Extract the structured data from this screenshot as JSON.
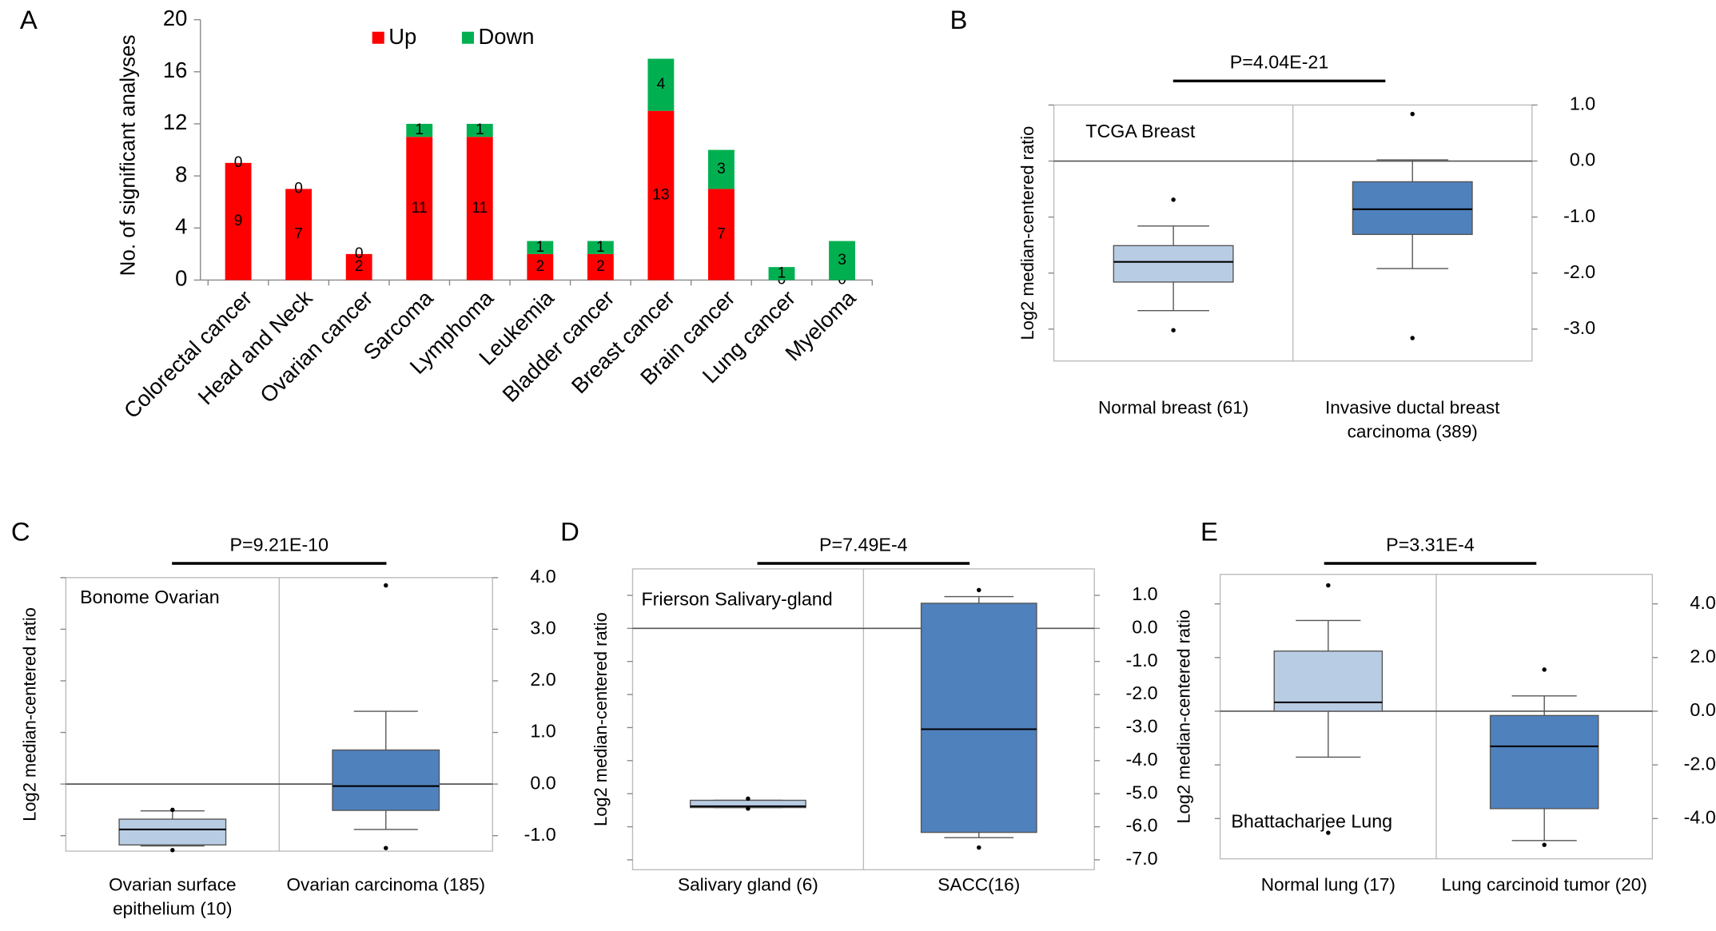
{
  "chart_data": [
    {
      "type": "stacked_bar",
      "panel": "A",
      "ylabel": "No. of significant analyses",
      "categories": [
        "Colorectal cancer",
        "Head and Neck",
        "Ovarian cancer",
        "Sarcoma",
        "Lymphoma",
        "Leukemia",
        "Bladder cancer",
        "Breast cancer",
        "Brain cancer",
        "Lung cancer",
        "Myeloma"
      ],
      "series": [
        {
          "name": "Up",
          "color": "#ff0000",
          "values": [
            9,
            7,
            2,
            11,
            11,
            2,
            2,
            13,
            7,
            0,
            0
          ]
        },
        {
          "name": "Down",
          "color": "#00b050",
          "values": [
            0,
            0,
            0,
            1,
            1,
            1,
            1,
            4,
            3,
            1,
            3
          ]
        }
      ],
      "ylim": [
        0,
        20
      ],
      "yticks": [
        0,
        4,
        8,
        12,
        16,
        20
      ]
    },
    {
      "type": "box",
      "panel": "B",
      "title": "P=4.04E-21",
      "annotation": "TCGA Breast",
      "ylabel": "Log2 median-centered ratio",
      "categories": [
        "Normal breast (61)",
        "Invasive ductal breast carcinoma (389)"
      ],
      "colors": [
        "#b8cce4",
        "#4f81bd"
      ],
      "boxes": [
        {
          "min": -2.67,
          "q1": -2.16,
          "median": -1.8,
          "q3": -1.51,
          "max": -1.16,
          "outliers": [
            -0.69,
            -3.02
          ]
        },
        {
          "min": -1.92,
          "q1": -1.31,
          "median": -0.86,
          "q3": -0.37,
          "max": 0.02,
          "outliers": [
            0.84,
            -3.16
          ]
        }
      ],
      "ylim": [
        -3.57,
        1.0
      ],
      "yticks": [
        {
          "value": 1,
          "label": "1.0"
        },
        {
          "value": 0,
          "label": "0.0"
        },
        {
          "value": -1,
          "label": "-1.0"
        },
        {
          "value": -2,
          "label": "-2.0"
        },
        {
          "value": -3,
          "label": "-3.0"
        }
      ]
    },
    {
      "type": "box",
      "panel": "C",
      "title": "P=9.21E-10",
      "annotation": "Bonome Ovarian",
      "ylabel": "Log2 median-centered ratio",
      "categories": [
        "Ovarian surface epithelium (10)",
        "Ovarian carcinoma (185)"
      ],
      "colors": [
        "#b8cce4",
        "#4f81bd"
      ],
      "boxes": [
        {
          "min": -1.2,
          "q1": -1.18,
          "median": -0.88,
          "q3": -0.68,
          "max": -0.52,
          "outliers": [
            -0.5,
            -1.28
          ]
        },
        {
          "min": -0.88,
          "q1": -0.51,
          "median": -0.04,
          "q3": 0.66,
          "max": 1.41,
          "outliers": [
            3.85,
            -1.24
          ]
        }
      ],
      "ylim": [
        -1.3,
        4.0
      ],
      "yticks": [
        {
          "value": 4,
          "label": "4.0"
        },
        {
          "value": 3,
          "label": "3.0"
        },
        {
          "value": 2,
          "label": "2.0"
        },
        {
          "value": 1,
          "label": "1.0"
        },
        {
          "value": 0,
          "label": "0.0"
        },
        {
          "value": -1,
          "label": "-1.0"
        }
      ]
    },
    {
      "type": "box",
      "panel": "D",
      "title": "P=7.49E-4",
      "annotation": "Frierson Salivary-gland",
      "ylabel": "Log2 median-centered ratio",
      "categories": [
        "Salivary gland (6)",
        "SACC(16)"
      ],
      "colors": [
        "#b8cce4",
        "#4f81bd"
      ],
      "boxes": [
        {
          "min": -5.42,
          "q1": -5.42,
          "median": -5.38,
          "q3": -5.2,
          "max": -5.2,
          "outliers": [
            -5.15,
            -5.45
          ]
        },
        {
          "min": -6.33,
          "q1": -6.17,
          "median": -3.05,
          "q3": 0.76,
          "max": 0.96,
          "outliers": [
            1.16,
            -6.63
          ]
        }
      ],
      "ylim": [
        -7.3,
        1.8
      ],
      "yticks": [
        {
          "value": 1,
          "label": "1.0"
        },
        {
          "value": 0,
          "label": "0.0"
        },
        {
          "value": -1,
          "label": "-1.0"
        },
        {
          "value": -2,
          "label": "-2.0"
        },
        {
          "value": -3,
          "label": "-3.0"
        },
        {
          "value": -4,
          "label": "-4.0"
        },
        {
          "value": -5,
          "label": "-5.0"
        },
        {
          "value": -6,
          "label": "-6.0"
        },
        {
          "value": -7,
          "label": "-7.0"
        }
      ]
    },
    {
      "type": "box",
      "panel": "E",
      "title": "P=3.31E-4",
      "annotation": "Bhattacharjee Lung",
      "ylabel": "Log2 median-centered ratio",
      "categories": [
        "Normal lung (17)",
        "Lung carcinoid tumor (20)"
      ],
      "colors": [
        "#b8cce4",
        "#4f81bd"
      ],
      "boxes": [
        {
          "min": -1.71,
          "q1": 0,
          "median": 0.33,
          "q3": 2.24,
          "max": 3.38,
          "outliers": [
            4.69,
            -4.53
          ]
        },
        {
          "min": -4.82,
          "q1": -3.63,
          "median": -1.31,
          "q3": -0.16,
          "max": 0.57,
          "outliers": [
            1.55,
            -4.98
          ]
        }
      ],
      "ylim": [
        -5.5,
        5.1
      ],
      "yticks": [
        {
          "value": 4,
          "label": "4.0"
        },
        {
          "value": 2,
          "label": "2.0"
        },
        {
          "value": 0,
          "label": "0.0"
        },
        {
          "value": -2,
          "label": "-2.0"
        },
        {
          "value": -4,
          "label": "-4.0"
        }
      ]
    }
  ]
}
